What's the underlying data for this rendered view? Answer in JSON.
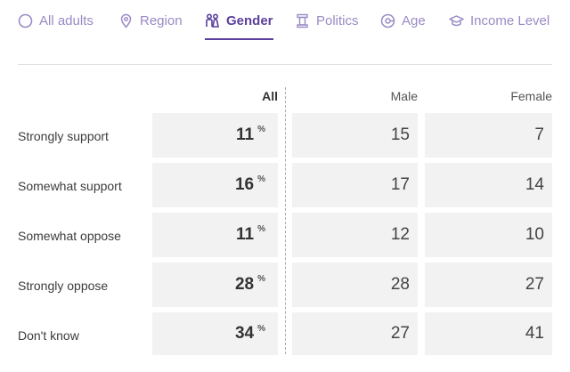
{
  "tabs": [
    {
      "label": "All adults",
      "icon": "circle-icon",
      "active": false
    },
    {
      "label": "Region",
      "icon": "location-pin-icon",
      "active": false
    },
    {
      "label": "Gender",
      "icon": "people-icon",
      "active": true
    },
    {
      "label": "Politics",
      "icon": "pillar-icon",
      "active": false
    },
    {
      "label": "Age",
      "icon": "age-gauge-icon",
      "active": false
    },
    {
      "label": "Income Level",
      "icon": "graduation-cap-icon",
      "active": false
    }
  ],
  "colors": {
    "accent": "#5b3f9c",
    "tab_inactive": "#9a8ac4",
    "cell_bg": "#f2f2f2"
  },
  "table": {
    "headers": [
      "All",
      "Male",
      "Female"
    ],
    "unit": "%",
    "rows": [
      {
        "label": "Strongly support",
        "all": "11",
        "male": "15",
        "female": "7"
      },
      {
        "label": "Somewhat support",
        "all": "16",
        "male": "17",
        "female": "14"
      },
      {
        "label": "Somewhat oppose",
        "all": "11",
        "male": "12",
        "female": "10"
      },
      {
        "label": "Strongly oppose",
        "all": "28",
        "male": "28",
        "female": "27"
      },
      {
        "label": "Don't know",
        "all": "34",
        "male": "27",
        "female": "41"
      }
    ]
  }
}
